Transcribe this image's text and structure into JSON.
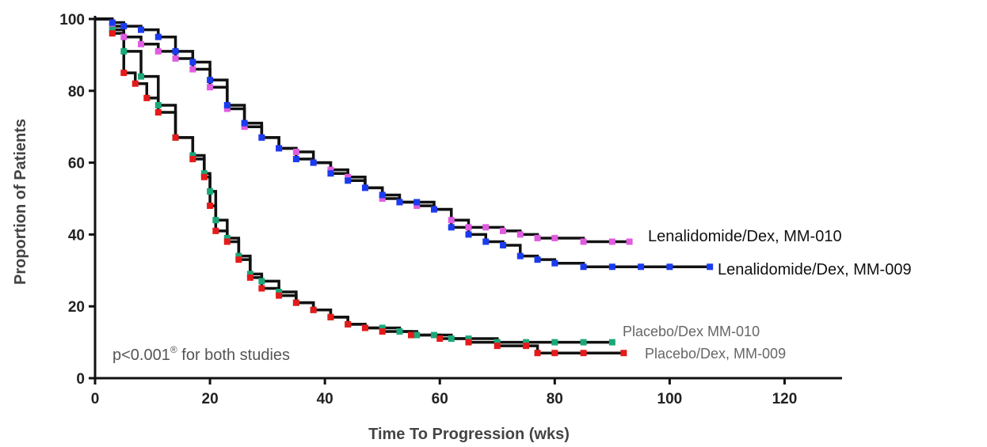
{
  "chart_data": {
    "type": "line",
    "title": "",
    "xlabel": "Time To Progression (wks)",
    "ylabel": "Proportion of Patients",
    "xlim": [
      0,
      130
    ],
    "ylim": [
      0,
      100
    ],
    "xticks": [
      0,
      20,
      40,
      60,
      80,
      100,
      120
    ],
    "yticks": [
      0,
      20,
      40,
      60,
      80,
      100
    ],
    "grid": false,
    "legend": "inline-labels",
    "annotation": "p<0.001",
    "annotation_sup": "®",
    "annotation_suffix": " for both studies",
    "series": [
      {
        "name": "Lenalidomide/Dex, MM-010",
        "color": "#e05ce0",
        "x": [
          0,
          3,
          5,
          8,
          11,
          14,
          17,
          20,
          23,
          26,
          29,
          32,
          35,
          38,
          41,
          44,
          47,
          50,
          53,
          56,
          59,
          62,
          65,
          68,
          71,
          74,
          77,
          80,
          85,
          90,
          93
        ],
        "y": [
          100,
          98,
          95,
          93,
          91,
          89,
          86,
          81,
          75,
          70,
          67,
          64,
          63,
          60,
          58,
          56,
          53,
          50,
          49,
          48,
          47,
          44,
          42,
          42,
          41,
          40,
          39,
          39,
          38,
          38,
          38
        ]
      },
      {
        "name": "Lenalidomide/Dex, MM-009",
        "color": "#1a3cf0",
        "x": [
          0,
          3,
          5,
          8,
          11,
          14,
          17,
          20,
          23,
          26,
          29,
          32,
          35,
          38,
          41,
          44,
          47,
          50,
          53,
          56,
          59,
          62,
          65,
          68,
          71,
          74,
          77,
          80,
          85,
          90,
          95,
          100,
          107
        ],
        "y": [
          100,
          99,
          98,
          97,
          95,
          91,
          88,
          83,
          76,
          71,
          67,
          64,
          61,
          60,
          57,
          55,
          53,
          51,
          49,
          49,
          47,
          42,
          40,
          38,
          37,
          34,
          33,
          32,
          31,
          31,
          31,
          31,
          31
        ]
      },
      {
        "name": "Placebo/Dex MM-010",
        "color": "#1aa87a",
        "x": [
          0,
          3,
          5,
          8,
          11,
          14,
          17,
          19,
          20,
          21,
          23,
          25,
          27,
          29,
          32,
          35,
          38,
          41,
          44,
          47,
          50,
          53,
          56,
          59,
          62,
          65,
          70,
          75,
          80,
          85,
          90
        ],
        "y": [
          100,
          97,
          91,
          84,
          76,
          67,
          62,
          57,
          52,
          44,
          39,
          34,
          29,
          27,
          24,
          21,
          19,
          17,
          15,
          14,
          14,
          13,
          12,
          12,
          11,
          11,
          10,
          10,
          10,
          10,
          10
        ]
      },
      {
        "name": "Placebo/Dex, MM-009",
        "color": "#e51a1a",
        "x": [
          0,
          3,
          5,
          7,
          9,
          11,
          14,
          17,
          19,
          20,
          21,
          23,
          25,
          27,
          29,
          32,
          35,
          38,
          41,
          44,
          47,
          50,
          55,
          60,
          65,
          70,
          75,
          77,
          80,
          85,
          92
        ],
        "y": [
          100,
          96,
          85,
          82,
          78,
          74,
          67,
          61,
          56,
          48,
          41,
          38,
          33,
          28,
          25,
          23,
          21,
          19,
          17,
          15,
          14,
          13,
          12,
          11,
          10,
          9,
          9,
          7,
          7,
          7,
          7
        ]
      }
    ]
  }
}
